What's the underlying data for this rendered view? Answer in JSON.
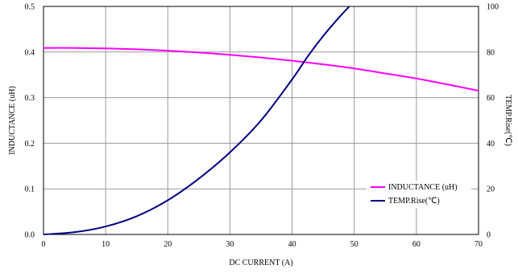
{
  "chart_data": {
    "type": "line",
    "xlabel": "DC CURRENT (A)",
    "ylabel": "INDUCTANCE (uH)",
    "y2label": "TEMP.Rise(℃)",
    "xlim": [
      0,
      70
    ],
    "ylim": [
      0,
      0.5
    ],
    "y2lim": [
      0,
      100
    ],
    "x_ticks": [
      "0",
      "10",
      "20",
      "30",
      "40",
      "50",
      "60",
      "70"
    ],
    "y_ticks": [
      "0.0",
      "0.1",
      "0.2",
      "0.3",
      "0.4",
      "0.5"
    ],
    "y2_ticks": [
      "0",
      "20",
      "40",
      "60",
      "80",
      "100"
    ],
    "grid": true,
    "legend_position": "bottom-right",
    "series": [
      {
        "name": "INDUCTANCE (uH)",
        "axis": "left",
        "color": "#ff00ff",
        "x": [
          0,
          5,
          10,
          15,
          20,
          25,
          30,
          35,
          40,
          45,
          50,
          55,
          60,
          65,
          70
        ],
        "y": [
          0.409,
          0.409,
          0.408,
          0.406,
          0.403,
          0.399,
          0.394,
          0.388,
          0.381,
          0.373,
          0.364,
          0.353,
          0.342,
          0.329,
          0.315
        ]
      },
      {
        "name": "TEMP.Rise(℃)",
        "axis": "right",
        "color": "#000080",
        "x": [
          0,
          5,
          10,
          15,
          20,
          25,
          30,
          35,
          40,
          42.5,
          45,
          47.5,
          49.2
        ],
        "y": [
          0,
          1,
          3.5,
          8,
          15,
          24.5,
          36,
          50,
          68,
          78,
          87,
          95,
          100
        ]
      }
    ]
  }
}
